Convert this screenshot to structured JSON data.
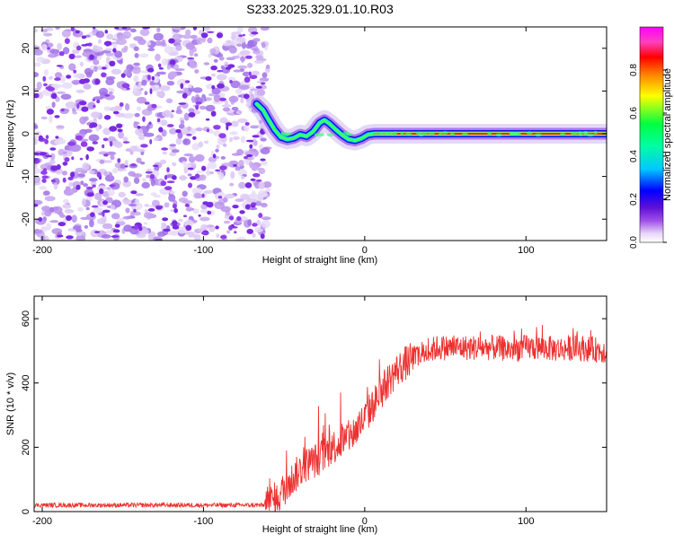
{
  "title": "S233.2025.329.01.10.R03",
  "chart_data": [
    {
      "type": "heatmap",
      "xlabel": "Height of straight line (km)",
      "ylabel": "Frequency (Hz)",
      "xlim": [
        -205,
        150
      ],
      "ylim": [
        -25,
        25
      ],
      "xticks": [
        -200,
        -100,
        0,
        100
      ],
      "yticks": [
        -20,
        -10,
        0,
        10,
        20
      ],
      "colorbar": {
        "label": "Normalized spectral amplitude",
        "range": [
          0,
          1
        ],
        "ticks": [
          "0.0",
          "0.2",
          "0.4",
          "0.6",
          "0.8"
        ],
        "tick_values": [
          0,
          0.2,
          0.4,
          0.6,
          0.8
        ],
        "colormap": [
          "#ffffff",
          "#e8d8f8",
          "#a050e8",
          "#6010d8",
          "#0000ff",
          "#00c8ff",
          "#00ff40",
          "#ffff00",
          "#ff8000",
          "#ff0000",
          "#ff40c0",
          "#ff00ff"
        ]
      },
      "noise_region_km": [
        -205,
        -63
      ],
      "signal_track": [
        {
          "x": -67,
          "y": 7.0
        },
        {
          "x": -63,
          "y": 5.5
        },
        {
          "x": -60,
          "y": 3.5
        },
        {
          "x": -56,
          "y": 1.0
        },
        {
          "x": -52,
          "y": -0.8
        },
        {
          "x": -48,
          "y": -1.3
        },
        {
          "x": -44,
          "y": -1.0
        },
        {
          "x": -40,
          "y": -0.2
        },
        {
          "x": -36,
          "y": -0.6
        },
        {
          "x": -32,
          "y": 0.5
        },
        {
          "x": -28,
          "y": 2.5
        },
        {
          "x": -25,
          "y": 3.2
        },
        {
          "x": -22,
          "y": 2.4
        },
        {
          "x": -18,
          "y": 1.0
        },
        {
          "x": -14,
          "y": -0.3
        },
        {
          "x": -10,
          "y": -1.3
        },
        {
          "x": -6,
          "y": -1.6
        },
        {
          "x": -2,
          "y": -1.1
        },
        {
          "x": 2,
          "y": -0.2
        },
        {
          "x": 6,
          "y": 0.0
        },
        {
          "x": 150,
          "y": 0.0
        }
      ]
    },
    {
      "type": "line",
      "xlabel": "Height of straight line (km)",
      "ylabel": "SNR (10 * v/v)",
      "xlim": [
        -205,
        150
      ],
      "ylim": [
        0,
        670
      ],
      "xticks": [
        -200,
        -100,
        0,
        100
      ],
      "yticks": [
        0,
        200,
        400,
        600
      ],
      "color": "#ee3030",
      "series": [
        {
          "name": "SNR",
          "x": [
            -205,
            -150,
            -100,
            -70,
            -62,
            -55,
            -50,
            -45,
            -40,
            -35,
            -30,
            -25,
            -20,
            -15,
            -10,
            -5,
            0,
            5,
            10,
            15,
            20,
            25,
            30,
            35,
            40,
            45,
            50,
            60,
            70,
            80,
            90,
            100,
            110,
            120,
            130,
            140,
            150
          ],
          "y": [
            20,
            20,
            20,
            20,
            20,
            40,
            70,
            100,
            130,
            150,
            160,
            180,
            200,
            215,
            230,
            255,
            290,
            330,
            370,
            410,
            440,
            460,
            475,
            490,
            500,
            510,
            510,
            510,
            510,
            510,
            505,
            510,
            510,
            505,
            510,
            505,
            500
          ]
        }
      ]
    }
  ]
}
